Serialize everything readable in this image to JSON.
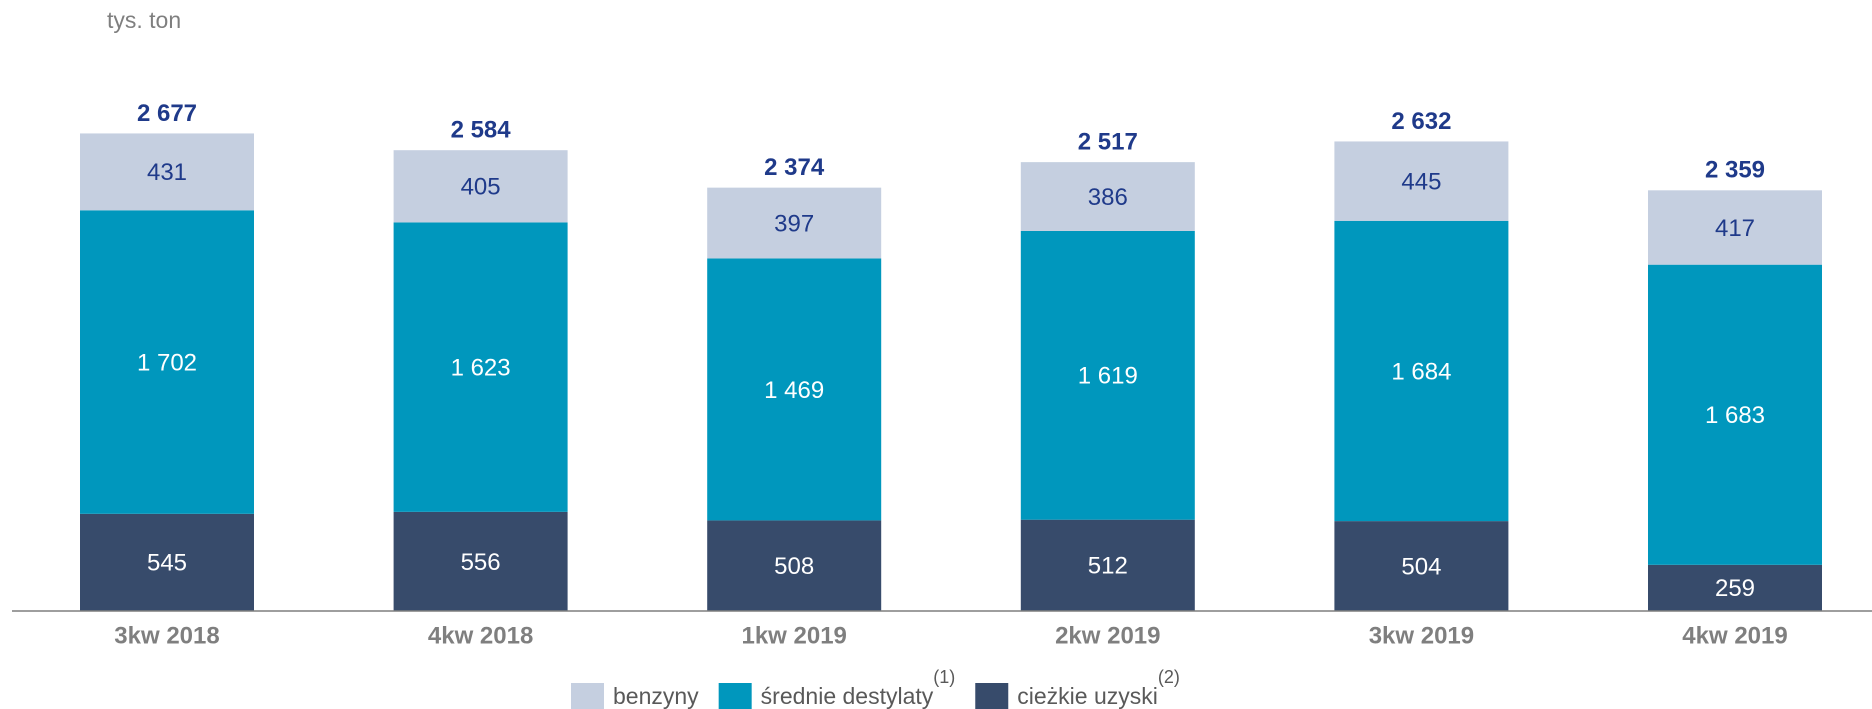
{
  "chart_data": {
    "type": "stacked_bar",
    "y_label": "tys. ton",
    "categories": [
      "3kw 2018",
      "4kw 2018",
      "1kw 2019",
      "2kw 2019",
      "3kw 2019",
      "4kw 2019"
    ],
    "series": [
      {
        "name": "cieżkie uzyski",
        "note": "(2)",
        "color": "#374b6b",
        "label_color": "#ffffff",
        "values": [
          545,
          556,
          508,
          512,
          504,
          259
        ]
      },
      {
        "name": "średnie destylaty",
        "note": "(1)",
        "color": "#0097bd",
        "label_color": "#ffffff",
        "values": [
          1702,
          1623,
          1469,
          1619,
          1684,
          1683
        ],
        "value_labels": [
          "1 702",
          "1 623",
          "1 469",
          "1 619",
          "1 684",
          "1 683"
        ]
      },
      {
        "name": "benzyny",
        "color": "#c5cfe0",
        "label_color": "#1f3a8a",
        "values": [
          431,
          405,
          397,
          386,
          445,
          417
        ]
      }
    ],
    "totals": [
      2677,
      2584,
      2374,
      2517,
      2632,
      2359
    ],
    "total_labels": [
      "2 677",
      "2 584",
      "2 374",
      "2 517",
      "2 632",
      "2 359"
    ],
    "ylim": [
      0,
      3000
    ]
  }
}
